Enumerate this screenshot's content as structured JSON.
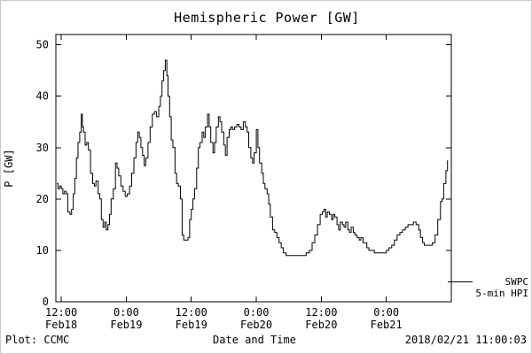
{
  "title": "Hemispheric Power [GW]",
  "y_axis_label": "P [GW]",
  "x_axis_label": "Date and Time",
  "legend": {
    "line1": "SWPC",
    "line2": "5-min HPI"
  },
  "footer": {
    "left": "Plot: CCMC",
    "right": "2018/02/21 11:00:03"
  },
  "colors": {
    "line": "#000000",
    "axis": "#000000",
    "background": "#ffffff"
  },
  "chart_data": {
    "type": "line",
    "line_style": "step",
    "grid": false,
    "legend_position": "right-bottom-outside",
    "title": "Hemispheric Power [GW]",
    "xlabel": "Date and Time",
    "ylabel": "P [GW]",
    "ylim": [
      0,
      52
    ],
    "yticks": [
      0,
      10,
      20,
      30,
      40,
      50
    ],
    "x_unit": "hours since 2018-02-18 00:00",
    "xlim": [
      11,
      84
    ],
    "xticks": [
      {
        "hour": 12,
        "time": "12:00",
        "date": "Feb18"
      },
      {
        "hour": 24,
        "time": "0:00",
        "date": "Feb19"
      },
      {
        "hour": 36,
        "time": "12:00",
        "date": "Feb19"
      },
      {
        "hour": 48,
        "time": "0:00",
        "date": "Feb20"
      },
      {
        "hour": 60,
        "time": "12:00",
        "date": "Feb20"
      },
      {
        "hour": 72,
        "time": "0:00",
        "date": "Feb21"
      }
    ],
    "series": [
      {
        "name": "SWPC 5-min HPI",
        "points": [
          [
            11.2,
            23
          ],
          [
            11.4,
            22
          ],
          [
            11.7,
            22.5
          ],
          [
            12.0,
            22
          ],
          [
            12.3,
            21
          ],
          [
            12.6,
            21.5
          ],
          [
            12.9,
            21
          ],
          [
            13.2,
            17.5
          ],
          [
            13.6,
            17
          ],
          [
            13.9,
            18
          ],
          [
            14.2,
            21
          ],
          [
            14.5,
            24
          ],
          [
            14.8,
            28
          ],
          [
            15.1,
            31
          ],
          [
            15.4,
            33
          ],
          [
            15.7,
            36.5
          ],
          [
            15.9,
            34
          ],
          [
            16.1,
            33
          ],
          [
            16.4,
            30.5
          ],
          [
            16.7,
            31
          ],
          [
            17.0,
            29.5
          ],
          [
            17.4,
            25
          ],
          [
            17.8,
            23
          ],
          [
            18.1,
            22.5
          ],
          [
            18.4,
            23.5
          ],
          [
            18.8,
            21
          ],
          [
            19.1,
            20
          ],
          [
            19.4,
            16
          ],
          [
            19.7,
            14.5
          ],
          [
            20.0,
            15.5
          ],
          [
            20.3,
            14
          ],
          [
            20.6,
            15
          ],
          [
            20.9,
            17
          ],
          [
            21.2,
            20
          ],
          [
            21.6,
            22
          ],
          [
            22.0,
            27
          ],
          [
            22.3,
            26
          ],
          [
            22.6,
            24.5
          ],
          [
            23.0,
            22.5
          ],
          [
            23.4,
            21.5
          ],
          [
            23.8,
            20.5
          ],
          [
            24.2,
            21
          ],
          [
            24.6,
            22.5
          ],
          [
            25.0,
            25
          ],
          [
            25.4,
            28
          ],
          [
            25.8,
            31
          ],
          [
            26.1,
            33
          ],
          [
            26.4,
            32
          ],
          [
            26.7,
            30
          ],
          [
            27.0,
            28.5
          ],
          [
            27.3,
            26.5
          ],
          [
            27.6,
            28
          ],
          [
            28.0,
            31
          ],
          [
            28.4,
            34
          ],
          [
            28.8,
            36.5
          ],
          [
            29.2,
            37
          ],
          [
            29.6,
            36
          ],
          [
            30.0,
            38
          ],
          [
            30.3,
            40
          ],
          [
            30.6,
            43
          ],
          [
            30.9,
            45
          ],
          [
            31.2,
            47
          ],
          [
            31.5,
            44
          ],
          [
            31.7,
            40
          ],
          [
            32.0,
            36
          ],
          [
            32.3,
            31.5
          ],
          [
            32.6,
            30
          ],
          [
            33.0,
            25
          ],
          [
            33.3,
            23
          ],
          [
            33.6,
            22.5
          ],
          [
            34.0,
            20
          ],
          [
            34.3,
            13
          ],
          [
            34.6,
            12
          ],
          [
            35.0,
            12
          ],
          [
            35.4,
            12.5
          ],
          [
            35.7,
            16
          ],
          [
            36.0,
            18
          ],
          [
            36.3,
            20
          ],
          [
            36.6,
            22
          ],
          [
            37.0,
            26
          ],
          [
            37.3,
            30
          ],
          [
            37.6,
            31
          ],
          [
            38.0,
            33
          ],
          [
            38.3,
            32
          ],
          [
            38.6,
            34
          ],
          [
            39.0,
            36.5
          ],
          [
            39.3,
            34
          ],
          [
            39.6,
            31
          ],
          [
            40.0,
            29
          ],
          [
            40.3,
            31
          ],
          [
            40.6,
            34
          ],
          [
            41.0,
            36
          ],
          [
            41.3,
            35
          ],
          [
            41.6,
            33
          ],
          [
            42.0,
            30.5
          ],
          [
            42.3,
            28.5
          ],
          [
            42.6,
            32
          ],
          [
            43.0,
            33.5
          ],
          [
            43.3,
            34
          ],
          [
            43.6,
            33.5
          ],
          [
            44.0,
            34
          ],
          [
            44.4,
            34.5
          ],
          [
            44.8,
            34
          ],
          [
            45.2,
            33.5
          ],
          [
            45.6,
            35
          ],
          [
            46.0,
            34
          ],
          [
            46.3,
            33
          ],
          [
            46.6,
            30
          ],
          [
            47.0,
            28
          ],
          [
            47.3,
            27
          ],
          [
            47.6,
            29
          ],
          [
            48.0,
            33.5
          ],
          [
            48.3,
            30
          ],
          [
            48.6,
            27
          ],
          [
            49.0,
            25
          ],
          [
            49.3,
            23
          ],
          [
            49.6,
            22
          ],
          [
            50.0,
            21
          ],
          [
            50.3,
            19
          ],
          [
            50.6,
            16.5
          ],
          [
            51.0,
            14
          ],
          [
            51.4,
            13.5
          ],
          [
            51.8,
            12.5
          ],
          [
            52.2,
            11.5
          ],
          [
            52.6,
            10.5
          ],
          [
            53.0,
            9.5
          ],
          [
            53.5,
            9
          ],
          [
            54.5,
            9
          ],
          [
            55.5,
            9
          ],
          [
            56.5,
            9
          ],
          [
            57.2,
            9.5
          ],
          [
            57.8,
            10
          ],
          [
            58.3,
            11.5
          ],
          [
            58.8,
            13
          ],
          [
            59.3,
            15
          ],
          [
            59.8,
            17
          ],
          [
            60.2,
            17.5
          ],
          [
            60.5,
            18
          ],
          [
            60.8,
            16.5
          ],
          [
            61.1,
            17.5
          ],
          [
            61.5,
            17
          ],
          [
            61.9,
            16
          ],
          [
            62.2,
            17
          ],
          [
            62.5,
            16.5
          ],
          [
            62.9,
            15
          ],
          [
            63.2,
            14
          ],
          [
            63.5,
            15.5
          ],
          [
            63.9,
            15
          ],
          [
            64.2,
            14.5
          ],
          [
            64.5,
            15.5
          ],
          [
            64.9,
            14
          ],
          [
            65.2,
            13.5
          ],
          [
            65.5,
            14.5
          ],
          [
            65.9,
            13.5
          ],
          [
            66.2,
            13
          ],
          [
            66.6,
            12.5
          ],
          [
            67.0,
            12
          ],
          [
            67.3,
            12.5
          ],
          [
            67.7,
            11.5
          ],
          [
            68.0,
            11.5
          ],
          [
            68.4,
            10.5
          ],
          [
            68.8,
            10
          ],
          [
            69.2,
            10
          ],
          [
            69.8,
            9.5
          ],
          [
            70.5,
            9.5
          ],
          [
            71.2,
            9.5
          ],
          [
            72.0,
            10
          ],
          [
            72.5,
            10.5
          ],
          [
            73.0,
            11
          ],
          [
            73.5,
            12
          ],
          [
            74.0,
            13
          ],
          [
            74.5,
            13.5
          ],
          [
            75.0,
            14
          ],
          [
            75.5,
            14.5
          ],
          [
            76.0,
            15
          ],
          [
            76.5,
            15
          ],
          [
            77.0,
            15.5
          ],
          [
            77.5,
            15
          ],
          [
            78.0,
            14
          ],
          [
            78.3,
            12.5
          ],
          [
            78.7,
            11.5
          ],
          [
            79.0,
            11
          ],
          [
            79.5,
            11
          ],
          [
            80.0,
            11
          ],
          [
            80.5,
            11.5
          ],
          [
            81.0,
            13
          ],
          [
            81.5,
            16
          ],
          [
            82.0,
            19.5
          ],
          [
            82.3,
            20
          ],
          [
            82.6,
            23
          ],
          [
            83.0,
            25.5
          ],
          [
            83.3,
            27.5
          ]
        ]
      }
    ]
  }
}
